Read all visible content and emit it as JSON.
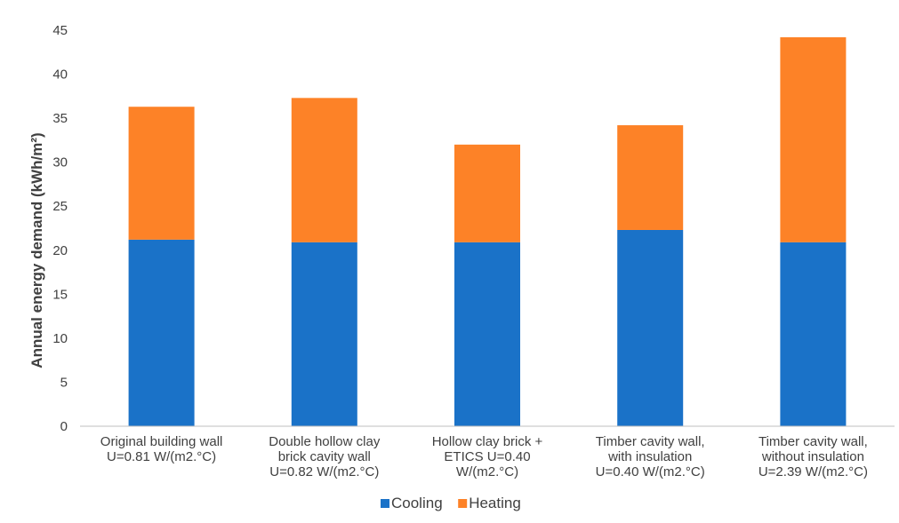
{
  "chart_data": {
    "type": "bar",
    "stacked": true,
    "title": "",
    "xlabel": "",
    "ylabel": "Annual energy demand (kWh/m²)",
    "ylim": [
      0,
      45
    ],
    "yticks": [
      0,
      5,
      10,
      15,
      20,
      25,
      30,
      35,
      40,
      45
    ],
    "grid": false,
    "legend_position": "bottom",
    "categories": [
      [
        "Original building wall",
        "U=0.81 W/(m2.°C)"
      ],
      [
        "Double hollow clay",
        "brick cavity wall",
        "U=0.82 W/(m2.°C)"
      ],
      [
        "Hollow clay brick +",
        "ETICS  U=0.40",
        "W/(m2.°C)"
      ],
      [
        "Timber cavity wall,",
        "with insulation",
        "U=0.40 W/(m2.°C)"
      ],
      [
        "Timber cavity wall,",
        "without insulation",
        "U=2.39 W/(m2.°C)"
      ]
    ],
    "series": [
      {
        "name": "Cooling",
        "color": "#1a72c8",
        "values": [
          21.2,
          20.9,
          20.9,
          22.3,
          20.9
        ]
      },
      {
        "name": "Heating",
        "color": "#fd8227",
        "values": [
          15.1,
          16.4,
          11.1,
          11.9,
          23.3
        ]
      }
    ]
  }
}
